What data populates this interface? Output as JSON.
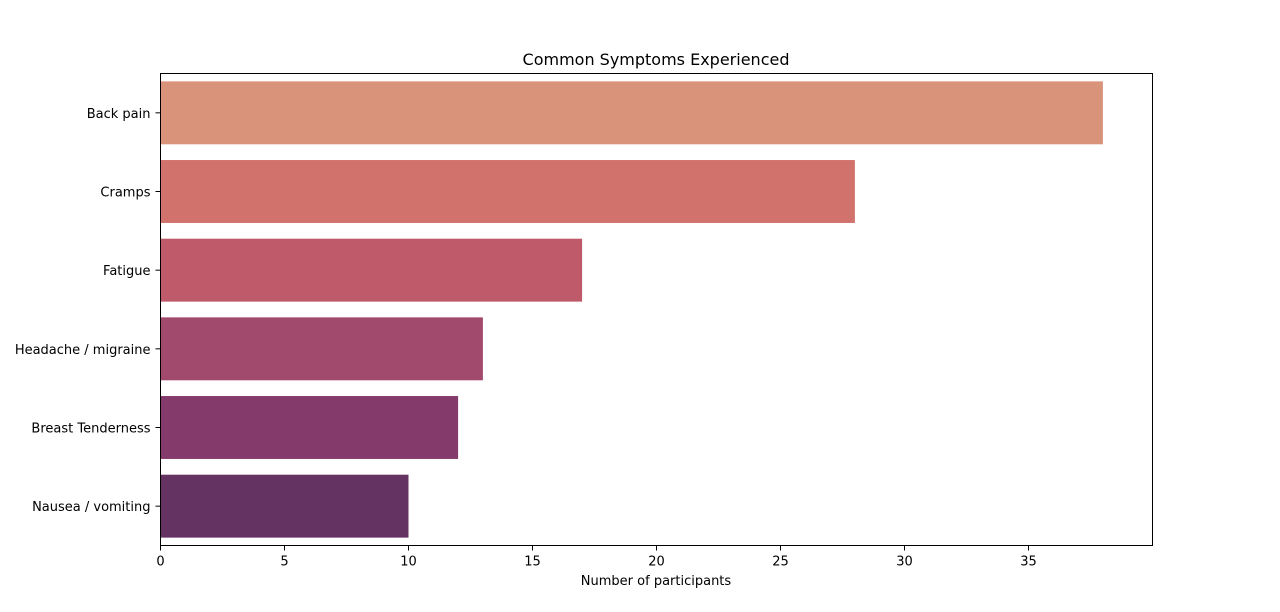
{
  "chart_data": {
    "type": "bar",
    "orientation": "horizontal",
    "title": "Common Symptoms Experienced",
    "xlabel": "Number of participants",
    "ylabel": "",
    "categories": [
      "Back pain",
      "Cramps",
      "Fatigue",
      "Headache / migraine",
      "Breast Tenderness",
      "Nausea / vomiting"
    ],
    "values": [
      38,
      28,
      17,
      13,
      12,
      10
    ],
    "colors": [
      "#d9937b",
      "#d1736c",
      "#bf5a6a",
      "#a24a6e",
      "#843b6b",
      "#653362"
    ],
    "xlim": [
      0,
      40
    ],
    "xticks": [
      0,
      5,
      10,
      15,
      20,
      25,
      30,
      35
    ],
    "grid": false
  }
}
